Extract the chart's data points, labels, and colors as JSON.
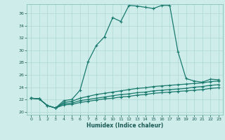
{
  "xlabel": "Humidex (Indice chaleur)",
  "bg_color": "#cdecea",
  "grid_color": "#b0d8d5",
  "line_color": "#1a7a6e",
  "xlim": [
    -0.5,
    23.5
  ],
  "ylim": [
    19.5,
    37.5
  ],
  "yticks": [
    20,
    22,
    24,
    26,
    28,
    30,
    32,
    34,
    36
  ],
  "xticks": [
    0,
    1,
    2,
    3,
    4,
    5,
    6,
    7,
    8,
    9,
    10,
    11,
    12,
    13,
    14,
    15,
    16,
    17,
    18,
    19,
    20,
    21,
    22,
    23
  ],
  "series1_x": [
    0,
    1,
    2,
    3,
    4,
    5,
    6,
    7,
    8,
    9,
    10,
    11,
    12,
    13,
    14,
    15,
    16,
    17,
    18,
    19,
    20,
    21,
    22,
    23
  ],
  "series1_y": [
    22.2,
    22.1,
    21.0,
    20.6,
    21.8,
    22.0,
    23.5,
    28.2,
    30.8,
    32.2,
    35.3,
    34.7,
    37.3,
    37.2,
    37.0,
    36.8,
    37.3,
    37.3,
    29.8,
    25.4,
    25.0,
    24.8,
    25.3,
    25.2
  ],
  "series2_x": [
    0,
    1,
    2,
    3,
    4,
    5,
    6,
    7,
    8,
    9,
    10,
    11,
    12,
    13,
    14,
    15,
    16,
    17,
    18,
    19,
    20,
    21,
    22,
    23
  ],
  "series2_y": [
    22.2,
    22.1,
    21.0,
    20.6,
    21.5,
    21.7,
    22.2,
    22.5,
    22.8,
    23.0,
    23.2,
    23.4,
    23.6,
    23.8,
    23.9,
    24.1,
    24.2,
    24.3,
    24.4,
    24.5,
    24.6,
    24.7,
    24.9,
    25.0
  ],
  "series3_x": [
    0,
    1,
    2,
    3,
    4,
    5,
    6,
    7,
    8,
    9,
    10,
    11,
    12,
    13,
    14,
    15,
    16,
    17,
    18,
    19,
    20,
    21,
    22,
    23
  ],
  "series3_y": [
    22.2,
    22.1,
    21.0,
    20.6,
    21.3,
    21.4,
    21.8,
    22.0,
    22.2,
    22.4,
    22.6,
    22.8,
    22.9,
    23.1,
    23.2,
    23.4,
    23.5,
    23.6,
    23.7,
    23.8,
    24.0,
    24.1,
    24.3,
    24.4
  ],
  "series4_x": [
    0,
    1,
    2,
    3,
    4,
    5,
    6,
    7,
    8,
    9,
    10,
    11,
    12,
    13,
    14,
    15,
    16,
    17,
    18,
    19,
    20,
    21,
    22,
    23
  ],
  "series4_y": [
    22.2,
    22.1,
    21.0,
    20.6,
    21.1,
    21.2,
    21.5,
    21.7,
    21.9,
    22.1,
    22.2,
    22.4,
    22.5,
    22.7,
    22.8,
    23.0,
    23.1,
    23.2,
    23.3,
    23.4,
    23.5,
    23.6,
    23.8,
    23.9
  ]
}
